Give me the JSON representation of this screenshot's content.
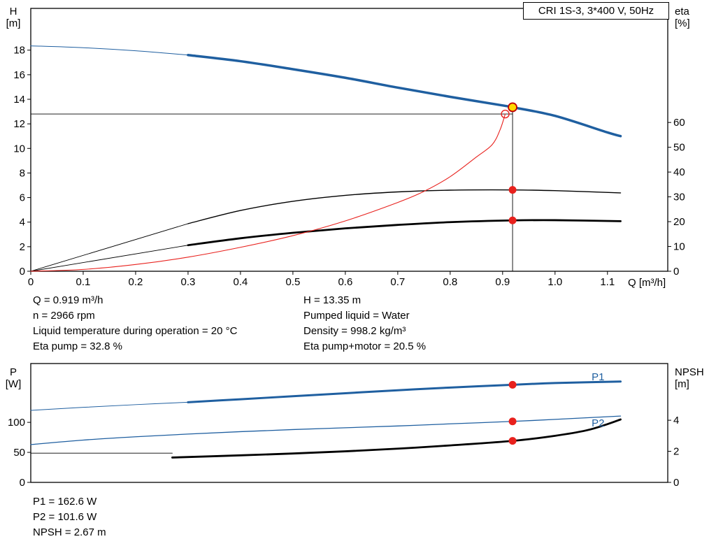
{
  "title_box": "CRI 1S-3, 3*400 V, 50Hz",
  "info_top_left": [
    "Q = 0.919 m³/h",
    "n = 2966 rpm",
    "Liquid temperature during operation = 20 °C",
    "Eta pump = 32.8 %"
  ],
  "info_top_right": [
    "H = 13.35 m",
    "Pumped liquid = Water",
    "Density = 998.2 kg/m³",
    "Eta pump+motor = 20.5 %"
  ],
  "info_bottom": [
    "P1 = 162.6 W",
    "P2 = 101.6 W",
    "NPSH = 2.67 m"
  ],
  "colors": {
    "blue": "#1f5fa0",
    "red": "#e8211d",
    "black": "#000000",
    "yellow": "#ffd800",
    "marker_ring": "#c00000"
  },
  "chart_data": [
    {
      "type": "line",
      "name": "qh-eta-chart",
      "x_axis": {
        "label": "Q [m³/h]",
        "ticks": [
          "0",
          "0.1",
          "0.2",
          "0.3",
          "0.4",
          "0.5",
          "0.6",
          "0.7",
          "0.8",
          "0.9",
          "1.0",
          "1.1"
        ],
        "range": [
          0,
          1.215
        ]
      },
      "left_axis": {
        "label": "H",
        "unit": "[m]",
        "ticks": [
          "0",
          "2",
          "4",
          "6",
          "8",
          "10",
          "12",
          "14",
          "16",
          "18"
        ],
        "range": [
          0,
          21.4
        ]
      },
      "right_axis": {
        "label": "eta",
        "unit": "[%]",
        "ticks": [
          "0",
          "10",
          "20",
          "30",
          "40",
          "50",
          "60"
        ],
        "range": [
          0,
          106
        ]
      },
      "series": [
        {
          "name": "qh-extension",
          "axis": "left",
          "color": "blue",
          "width": 1,
          "points": [
            [
              0,
              18.35
            ],
            [
              0.1,
              18.2
            ],
            [
              0.2,
              17.95
            ],
            [
              0.3,
              17.6
            ]
          ]
        },
        {
          "name": "qh-main",
          "axis": "left",
          "color": "blue",
          "width": 3.5,
          "points": [
            [
              0.3,
              17.6
            ],
            [
              0.4,
              17.1
            ],
            [
              0.5,
              16.45
            ],
            [
              0.6,
              15.75
            ],
            [
              0.7,
              14.95
            ],
            [
              0.8,
              14.2
            ],
            [
              0.9,
              13.5
            ],
            [
              0.919,
              13.35
            ],
            [
              1.0,
              12.65
            ],
            [
              1.1,
              11.3
            ],
            [
              1.125,
              11.0
            ]
          ]
        },
        {
          "name": "eta-pump-lead",
          "axis": "right",
          "color": "black",
          "width": 0.9,
          "points": [
            [
              0,
              0
            ],
            [
              0.3,
              19.2
            ]
          ]
        },
        {
          "name": "eta-pump",
          "axis": "right",
          "color": "black",
          "width": 1.4,
          "points": [
            [
              0.3,
              19.2
            ],
            [
              0.4,
              24.5
            ],
            [
              0.5,
              28.2
            ],
            [
              0.6,
              30.6
            ],
            [
              0.7,
              32.0
            ],
            [
              0.8,
              32.7
            ],
            [
              0.919,
              32.8
            ],
            [
              1.0,
              32.5
            ],
            [
              1.125,
              31.6
            ]
          ]
        },
        {
          "name": "eta-pump-motor-lead",
          "axis": "right",
          "color": "black",
          "width": 0.9,
          "points": [
            [
              0,
              0
            ],
            [
              0.3,
              10.5
            ]
          ]
        },
        {
          "name": "eta-pump-motor",
          "axis": "right",
          "color": "black",
          "width": 2.8,
          "points": [
            [
              0.3,
              10.5
            ],
            [
              0.4,
              13.3
            ],
            [
              0.5,
              15.5
            ],
            [
              0.6,
              17.3
            ],
            [
              0.7,
              18.7
            ],
            [
              0.8,
              19.8
            ],
            [
              0.919,
              20.5
            ],
            [
              1.0,
              20.6
            ],
            [
              1.125,
              20.2
            ]
          ]
        },
        {
          "name": "system-curve",
          "axis": "left",
          "color": "red",
          "width": 1.1,
          "points": [
            [
              0,
              0
            ],
            [
              0.1,
              0.15
            ],
            [
              0.2,
              0.55
            ],
            [
              0.3,
              1.15
            ],
            [
              0.4,
              1.95
            ],
            [
              0.5,
              2.9
            ],
            [
              0.6,
              4.1
            ],
            [
              0.7,
              5.6
            ],
            [
              0.75,
              6.5
            ],
            [
              0.8,
              7.7
            ],
            [
              0.85,
              9.3
            ],
            [
              0.88,
              10.3
            ],
            [
              0.895,
              11.5
            ],
            [
              0.905,
              12.8
            ]
          ]
        }
      ],
      "crosshair": {
        "q": 0.919,
        "h": 12.8,
        "top": 13.35
      },
      "markers": [
        {
          "name": "duty-point",
          "q": 0.919,
          "value": 13.35,
          "axis": "left",
          "style": "yellow-ring"
        },
        {
          "name": "system-intersection-point",
          "q": 0.905,
          "value": 12.8,
          "axis": "left",
          "style": "red-open"
        },
        {
          "name": "eta-pump-point",
          "q": 0.919,
          "value": 32.8,
          "axis": "right",
          "style": "red-dot"
        },
        {
          "name": "eta-pump-motor-point",
          "q": 0.919,
          "value": 20.5,
          "axis": "right",
          "style": "red-dot"
        }
      ],
      "curve_labels": []
    },
    {
      "type": "line",
      "name": "power-npsh-chart",
      "x_axis": {
        "label": "",
        "ticks": [],
        "range": [
          0,
          1.215
        ]
      },
      "left_axis": {
        "label": "P",
        "unit": "[W]",
        "ticks": [
          "0",
          "50",
          "100"
        ],
        "range": [
          0,
          198
        ]
      },
      "right_axis": {
        "label": "NPSH",
        "unit": "[m]",
        "ticks": [
          "0",
          "2",
          "4"
        ],
        "range": [
          0,
          7.65
        ]
      },
      "series": [
        {
          "name": "p1-extension",
          "axis": "left",
          "color": "blue",
          "width": 1,
          "points": [
            [
              0,
              120
            ],
            [
              0.1,
              125
            ],
            [
              0.2,
              129.5
            ],
            [
              0.3,
              133.5
            ]
          ]
        },
        {
          "name": "p1",
          "axis": "left",
          "color": "blue",
          "width": 3,
          "points": [
            [
              0.3,
              133.5
            ],
            [
              0.4,
              138.5
            ],
            [
              0.5,
              143.5
            ],
            [
              0.6,
              148.5
            ],
            [
              0.7,
              153.5
            ],
            [
              0.8,
              158
            ],
            [
              0.919,
              162.6
            ],
            [
              1.0,
              165.5
            ],
            [
              1.125,
              168
            ]
          ]
        },
        {
          "name": "p2",
          "axis": "left",
          "color": "blue",
          "width": 1.3,
          "points": [
            [
              0,
              63
            ],
            [
              0.1,
              70.5
            ],
            [
              0.2,
              76
            ],
            [
              0.3,
              80.5
            ],
            [
              0.4,
              84.5
            ],
            [
              0.5,
              88
            ],
            [
              0.6,
              91
            ],
            [
              0.7,
              94
            ],
            [
              0.8,
              97.5
            ],
            [
              0.919,
              101.6
            ],
            [
              1.0,
              105
            ],
            [
              1.125,
              110.5
            ]
          ]
        },
        {
          "name": "npsh-extension",
          "axis": "right",
          "color": "black",
          "width": 0.9,
          "points": [
            [
              0,
              1.88
            ],
            [
              0.27,
              1.88
            ]
          ]
        },
        {
          "name": "npsh",
          "axis": "right",
          "color": "black",
          "width": 2.8,
          "points": [
            [
              0.27,
              1.6
            ],
            [
              0.4,
              1.74
            ],
            [
              0.5,
              1.86
            ],
            [
              0.6,
              2.0
            ],
            [
              0.7,
              2.17
            ],
            [
              0.8,
              2.38
            ],
            [
              0.919,
              2.67
            ],
            [
              1.0,
              3.0
            ],
            [
              1.06,
              3.35
            ],
            [
              1.1,
              3.75
            ],
            [
              1.125,
              4.05
            ]
          ]
        }
      ],
      "markers": [
        {
          "name": "p1-point",
          "q": 0.919,
          "value": 162.6,
          "axis": "left",
          "style": "red-dot"
        },
        {
          "name": "p2-point",
          "q": 0.919,
          "value": 101.6,
          "axis": "left",
          "style": "red-dot"
        },
        {
          "name": "npsh-point",
          "q": 0.919,
          "value": 2.67,
          "axis": "right",
          "style": "red-dot"
        }
      ],
      "curve_labels": [
        {
          "text": "P1",
          "q": 1.082,
          "value": 176,
          "axis": "left",
          "color": "blue"
        },
        {
          "text": "P2",
          "q": 1.082,
          "value": 99,
          "axis": "left",
          "color": "blue"
        }
      ]
    }
  ]
}
